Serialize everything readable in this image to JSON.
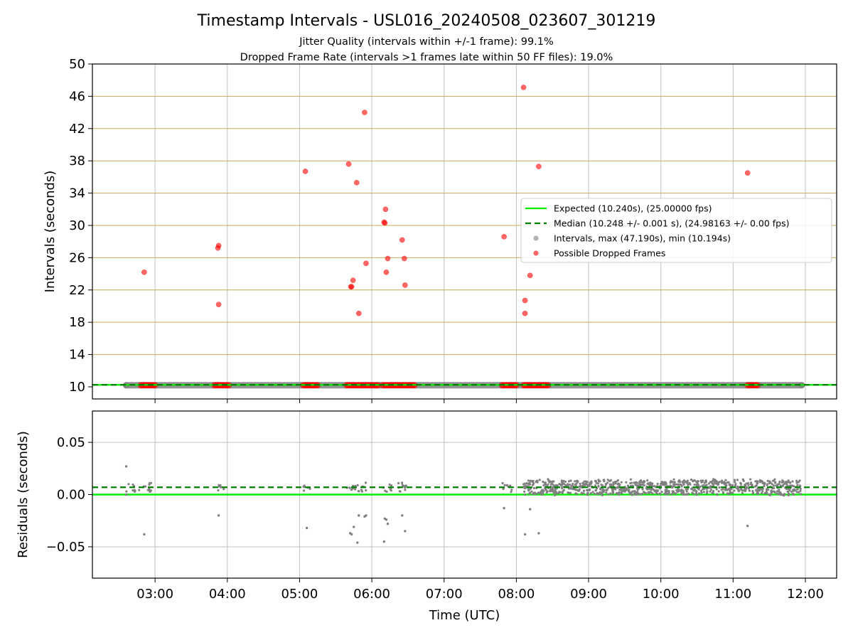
{
  "title": "Timestamp Intervals - USL016_20240508_023607_301219",
  "subtitle_1": "Jitter Quality (intervals within +/-1 frame): 99.1%",
  "subtitle_2": "Dropped Frame Rate (intervals >1 frames late within 50 FF files): 19.0%",
  "colors": {
    "expected": "#00ee00",
    "median": "#008000",
    "intervals": "#808080",
    "dropped": "#ff0000",
    "band": "#c8a858",
    "grid": "#c0c0c0"
  },
  "chart_data": [
    {
      "type": "scatter",
      "xlabel": "",
      "ylabel": "Intervals (seconds)",
      "x_ticks": [
        "03:00",
        "04:00",
        "05:00",
        "06:00",
        "07:00",
        "08:00",
        "09:00",
        "10:00",
        "11:00",
        "12:00"
      ],
      "x_range_hours": [
        2.133,
        12.433
      ],
      "ylim": [
        8.5,
        50
      ],
      "y_ticks": [
        10,
        14,
        18,
        22,
        26,
        30,
        34,
        38,
        42,
        46,
        50
      ],
      "horizontal_band_lines": [
        14,
        18,
        22,
        26,
        30,
        34,
        38,
        42,
        46,
        50
      ],
      "grid": true,
      "legend_position": "center-right",
      "series": [
        {
          "name": "Expected (10.240s), (25.00000 fps)",
          "kind": "hline",
          "y": 10.24
        },
        {
          "name": "Median (10.248 +/- 0.001 s), (24.98163 +/- 0.00 fps)",
          "kind": "hline-dashed",
          "y": 10.248
        },
        {
          "name": "Intervals, max (47.190s), min (10.194s)",
          "kind": "band",
          "x_start": 2.6,
          "x_end": 11.95,
          "y": 10.2
        },
        {
          "name": "Possible Dropped Frames",
          "kind": "points",
          "points": [
            [
              2.85,
              24.2
            ],
            [
              3.87,
              27.2
            ],
            [
              3.88,
              27.5
            ],
            [
              3.88,
              20.2
            ],
            [
              5.08,
              36.7
            ],
            [
              5.68,
              37.6
            ],
            [
              5.71,
              22.4
            ],
            [
              5.72,
              22.4
            ],
            [
              5.74,
              23.2
            ],
            [
              5.79,
              35.3
            ],
            [
              5.82,
              19.1
            ],
            [
              5.9,
              44.0
            ],
            [
              5.92,
              25.3
            ],
            [
              6.17,
              30.4
            ],
            [
              6.18,
              30.3
            ],
            [
              6.19,
              32.0
            ],
            [
              6.2,
              24.2
            ],
            [
              6.22,
              25.9
            ],
            [
              6.42,
              28.2
            ],
            [
              6.45,
              25.9
            ],
            [
              6.46,
              22.6
            ],
            [
              7.83,
              28.6
            ],
            [
              8.1,
              47.1
            ],
            [
              8.12,
              20.7
            ],
            [
              8.12,
              19.1
            ],
            [
              8.19,
              23.8
            ],
            [
              8.31,
              37.3
            ],
            [
              11.2,
              36.5
            ]
          ],
          "baseline_clusters": [
            [
              2.8,
              3.0
            ],
            [
              3.82,
              4.03
            ],
            [
              5.05,
              5.25
            ],
            [
              5.65,
              6.1
            ],
            [
              6.15,
              6.6
            ],
            [
              7.8,
              8.0
            ],
            [
              8.1,
              8.45
            ],
            [
              11.2,
              11.35
            ]
          ]
        }
      ]
    },
    {
      "type": "scatter",
      "xlabel": "Time (UTC)",
      "ylabel": "Residuals (seconds)",
      "x_ticks": [
        "03:00",
        "04:00",
        "05:00",
        "06:00",
        "07:00",
        "08:00",
        "09:00",
        "10:00",
        "11:00",
        "12:00"
      ],
      "x_range_hours": [
        2.133,
        12.433
      ],
      "ylim": [
        -0.08,
        0.08
      ],
      "y_ticks": [
        "−0.05",
        "0.00",
        "0.05"
      ],
      "y_tick_values": [
        -0.05,
        0,
        0.05
      ],
      "grid": true,
      "series": [
        {
          "name": "Expected",
          "kind": "hline",
          "y": 0.0
        },
        {
          "name": "Median",
          "kind": "hline-dashed",
          "y": 0.007
        },
        {
          "name": "Residuals",
          "kind": "points",
          "points": [
            [
              2.6,
              0.027
            ],
            [
              2.6,
              0.0
            ],
            [
              2.85,
              -0.038
            ],
            [
              3.88,
              -0.02
            ],
            [
              5.1,
              -0.032
            ],
            [
              5.7,
              -0.037
            ],
            [
              5.72,
              -0.038
            ],
            [
              5.75,
              -0.031
            ],
            [
              5.8,
              -0.046
            ],
            [
              5.82,
              -0.02
            ],
            [
              5.9,
              -0.021
            ],
            [
              5.92,
              -0.02
            ],
            [
              6.17,
              -0.045
            ],
            [
              6.18,
              -0.023
            ],
            [
              6.2,
              -0.024
            ],
            [
              6.22,
              -0.028
            ],
            [
              6.42,
              -0.02
            ],
            [
              6.46,
              -0.035
            ],
            [
              7.83,
              -0.013
            ],
            [
              8.12,
              -0.038
            ],
            [
              8.19,
              -0.014
            ],
            [
              8.31,
              -0.037
            ],
            [
              11.2,
              -0.03
            ]
          ],
          "dense_region": [
            8.1,
            11.95
          ]
        }
      ]
    }
  ]
}
